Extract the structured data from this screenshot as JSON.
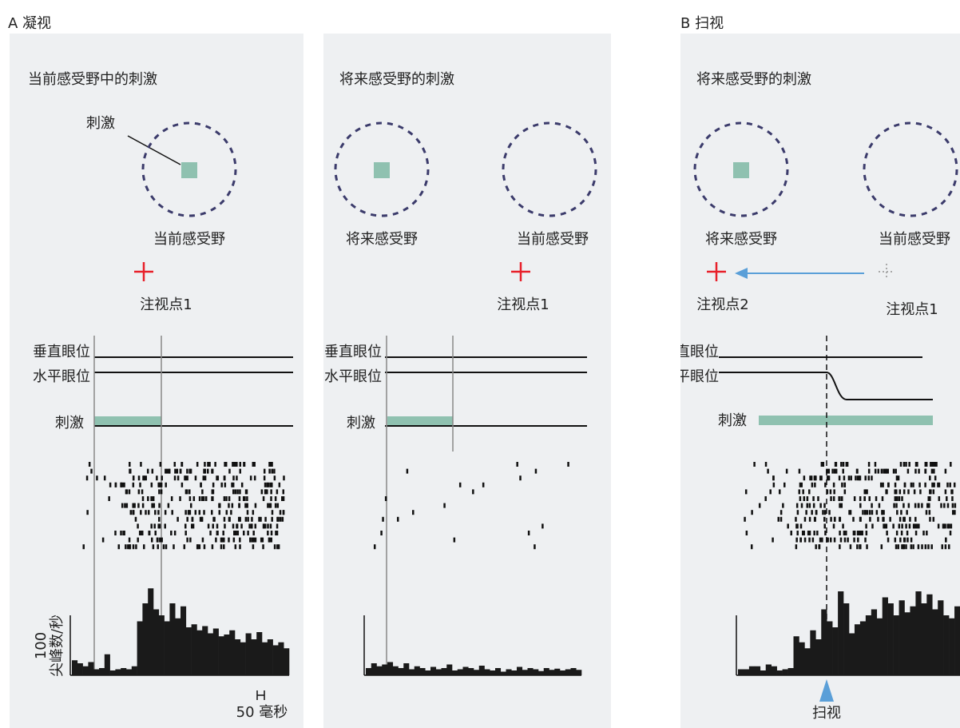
{
  "figure": {
    "section_a": "A  凝视",
    "section_b": "B  扫视",
    "histogram_axis_label": 100,
    "histogram_axis_unit": "尖峰数/秒",
    "scale_bar": "50 毫秒",
    "panels": [
      {
        "title": "当前感受野中的刺激",
        "stimulus_pointer": "刺激",
        "field_labels": [
          "当前感受野"
        ],
        "fixation_labels": [
          "注视点1"
        ],
        "trace_labels": [
          "垂直眼位",
          "水平眼位",
          "刺激"
        ],
        "histogram": [
          25,
          20,
          15,
          22,
          10,
          12,
          35,
          8,
          10,
          12,
          10,
          15,
          90,
          120,
          145,
          110,
          100,
          90,
          120,
          95,
          115,
          80,
          85,
          75,
          82,
          70,
          78,
          65,
          68,
          75,
          60,
          55,
          70,
          60,
          72,
          55,
          60,
          50,
          55,
          45
        ]
      },
      {
        "title": "将来感受野的刺激",
        "field_labels": [
          "将来感受野",
          "当前感受野"
        ],
        "fixation_labels": [
          "注视点1"
        ],
        "trace_labels": [
          "垂直眼位",
          "水平眼位",
          "刺激"
        ],
        "histogram": [
          12,
          20,
          15,
          18,
          22,
          15,
          12,
          20,
          10,
          15,
          12,
          8,
          14,
          10,
          12,
          18,
          8,
          10,
          14,
          12,
          9,
          16,
          10,
          8,
          12,
          6,
          10,
          8,
          14,
          9,
          12,
          10,
          7,
          12,
          9,
          11,
          8,
          10,
          12,
          9
        ]
      },
      {
        "title": "将来感受野的刺激",
        "field_labels": [
          "将来感受野",
          "当前感受野"
        ],
        "fixation_labels": [
          "注视点2",
          "注视点1"
        ],
        "trace_labels": [
          "垂直眼位",
          "水平眼位",
          "刺激"
        ],
        "saccade_label": "扫视",
        "histogram": [
          10,
          10,
          15,
          15,
          8,
          18,
          15,
          8,
          10,
          12,
          65,
          55,
          45,
          75,
          60,
          110,
          90,
          80,
          140,
          120,
          70,
          85,
          90,
          100,
          110,
          95,
          130,
          120,
          100,
          125,
          105,
          115,
          140,
          120,
          135,
          110,
          125,
          100,
          95,
          115
        ]
      }
    ]
  }
}
